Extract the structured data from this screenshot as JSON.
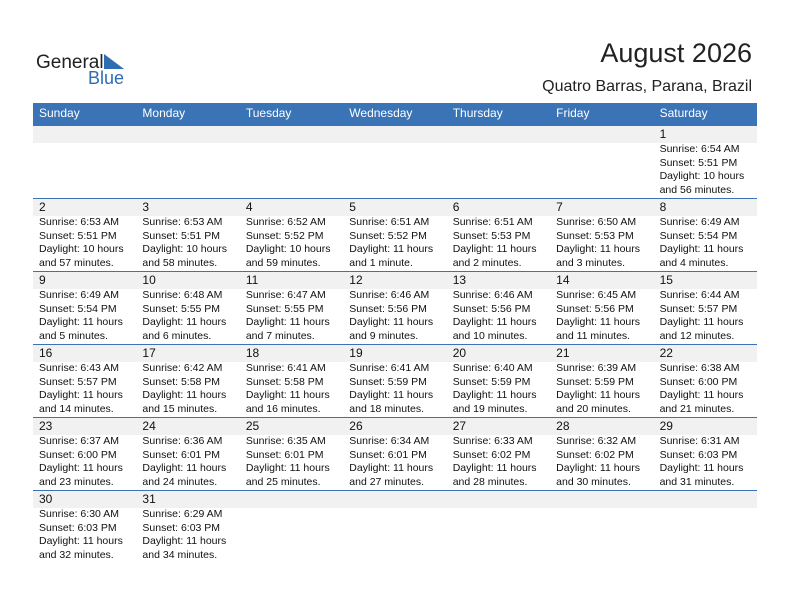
{
  "logo": {
    "line1": "General",
    "line2": "Blue"
  },
  "header": {
    "title": "August 2026",
    "subtitle": "Quatro Barras, Parana, Brazil"
  },
  "calendar": {
    "weekdays": [
      "Sunday",
      "Monday",
      "Tuesday",
      "Wednesday",
      "Thursday",
      "Friday",
      "Saturday"
    ],
    "weeks": [
      [
        null,
        null,
        null,
        null,
        null,
        null,
        {
          "day": 1,
          "lines": [
            "Sunrise: 6:54 AM",
            "Sunset: 5:51 PM",
            "Daylight: 10 hours",
            "and 56 minutes."
          ]
        }
      ],
      [
        {
          "day": 2,
          "lines": [
            "Sunrise: 6:53 AM",
            "Sunset: 5:51 PM",
            "Daylight: 10 hours",
            "and 57 minutes."
          ]
        },
        {
          "day": 3,
          "lines": [
            "Sunrise: 6:53 AM",
            "Sunset: 5:51 PM",
            "Daylight: 10 hours",
            "and 58 minutes."
          ]
        },
        {
          "day": 4,
          "lines": [
            "Sunrise: 6:52 AM",
            "Sunset: 5:52 PM",
            "Daylight: 10 hours",
            "and 59 minutes."
          ]
        },
        {
          "day": 5,
          "lines": [
            "Sunrise: 6:51 AM",
            "Sunset: 5:52 PM",
            "Daylight: 11 hours",
            "and 1 minute."
          ]
        },
        {
          "day": 6,
          "lines": [
            "Sunrise: 6:51 AM",
            "Sunset: 5:53 PM",
            "Daylight: 11 hours",
            "and 2 minutes."
          ]
        },
        {
          "day": 7,
          "lines": [
            "Sunrise: 6:50 AM",
            "Sunset: 5:53 PM",
            "Daylight: 11 hours",
            "and 3 minutes."
          ]
        },
        {
          "day": 8,
          "lines": [
            "Sunrise: 6:49 AM",
            "Sunset: 5:54 PM",
            "Daylight: 11 hours",
            "and 4 minutes."
          ]
        }
      ],
      [
        {
          "day": 9,
          "lines": [
            "Sunrise: 6:49 AM",
            "Sunset: 5:54 PM",
            "Daylight: 11 hours",
            "and 5 minutes."
          ]
        },
        {
          "day": 10,
          "lines": [
            "Sunrise: 6:48 AM",
            "Sunset: 5:55 PM",
            "Daylight: 11 hours",
            "and 6 minutes."
          ]
        },
        {
          "day": 11,
          "lines": [
            "Sunrise: 6:47 AM",
            "Sunset: 5:55 PM",
            "Daylight: 11 hours",
            "and 7 minutes."
          ]
        },
        {
          "day": 12,
          "lines": [
            "Sunrise: 6:46 AM",
            "Sunset: 5:56 PM",
            "Daylight: 11 hours",
            "and 9 minutes."
          ]
        },
        {
          "day": 13,
          "lines": [
            "Sunrise: 6:46 AM",
            "Sunset: 5:56 PM",
            "Daylight: 11 hours",
            "and 10 minutes."
          ]
        },
        {
          "day": 14,
          "lines": [
            "Sunrise: 6:45 AM",
            "Sunset: 5:56 PM",
            "Daylight: 11 hours",
            "and 11 minutes."
          ]
        },
        {
          "day": 15,
          "lines": [
            "Sunrise: 6:44 AM",
            "Sunset: 5:57 PM",
            "Daylight: 11 hours",
            "and 12 minutes."
          ]
        }
      ],
      [
        {
          "day": 16,
          "lines": [
            "Sunrise: 6:43 AM",
            "Sunset: 5:57 PM",
            "Daylight: 11 hours",
            "and 14 minutes."
          ]
        },
        {
          "day": 17,
          "lines": [
            "Sunrise: 6:42 AM",
            "Sunset: 5:58 PM",
            "Daylight: 11 hours",
            "and 15 minutes."
          ]
        },
        {
          "day": 18,
          "lines": [
            "Sunrise: 6:41 AM",
            "Sunset: 5:58 PM",
            "Daylight: 11 hours",
            "and 16 minutes."
          ]
        },
        {
          "day": 19,
          "lines": [
            "Sunrise: 6:41 AM",
            "Sunset: 5:59 PM",
            "Daylight: 11 hours",
            "and 18 minutes."
          ]
        },
        {
          "day": 20,
          "lines": [
            "Sunrise: 6:40 AM",
            "Sunset: 5:59 PM",
            "Daylight: 11 hours",
            "and 19 minutes."
          ]
        },
        {
          "day": 21,
          "lines": [
            "Sunrise: 6:39 AM",
            "Sunset: 5:59 PM",
            "Daylight: 11 hours",
            "and 20 minutes."
          ]
        },
        {
          "day": 22,
          "lines": [
            "Sunrise: 6:38 AM",
            "Sunset: 6:00 PM",
            "Daylight: 11 hours",
            "and 21 minutes."
          ]
        }
      ],
      [
        {
          "day": 23,
          "lines": [
            "Sunrise: 6:37 AM",
            "Sunset: 6:00 PM",
            "Daylight: 11 hours",
            "and 23 minutes."
          ]
        },
        {
          "day": 24,
          "lines": [
            "Sunrise: 6:36 AM",
            "Sunset: 6:01 PM",
            "Daylight: 11 hours",
            "and 24 minutes."
          ]
        },
        {
          "day": 25,
          "lines": [
            "Sunrise: 6:35 AM",
            "Sunset: 6:01 PM",
            "Daylight: 11 hours",
            "and 25 minutes."
          ]
        },
        {
          "day": 26,
          "lines": [
            "Sunrise: 6:34 AM",
            "Sunset: 6:01 PM",
            "Daylight: 11 hours",
            "and 27 minutes."
          ]
        },
        {
          "day": 27,
          "lines": [
            "Sunrise: 6:33 AM",
            "Sunset: 6:02 PM",
            "Daylight: 11 hours",
            "and 28 minutes."
          ]
        },
        {
          "day": 28,
          "lines": [
            "Sunrise: 6:32 AM",
            "Sunset: 6:02 PM",
            "Daylight: 11 hours",
            "and 30 minutes."
          ]
        },
        {
          "day": 29,
          "lines": [
            "Sunrise: 6:31 AM",
            "Sunset: 6:03 PM",
            "Daylight: 11 hours",
            "and 31 minutes."
          ]
        }
      ],
      [
        {
          "day": 30,
          "lines": [
            "Sunrise: 6:30 AM",
            "Sunset: 6:03 PM",
            "Daylight: 11 hours",
            "and 32 minutes."
          ]
        },
        {
          "day": 31,
          "lines": [
            "Sunrise: 6:29 AM",
            "Sunset: 6:03 PM",
            "Daylight: 11 hours",
            "and 34 minutes."
          ]
        },
        null,
        null,
        null,
        null,
        null
      ]
    ]
  }
}
